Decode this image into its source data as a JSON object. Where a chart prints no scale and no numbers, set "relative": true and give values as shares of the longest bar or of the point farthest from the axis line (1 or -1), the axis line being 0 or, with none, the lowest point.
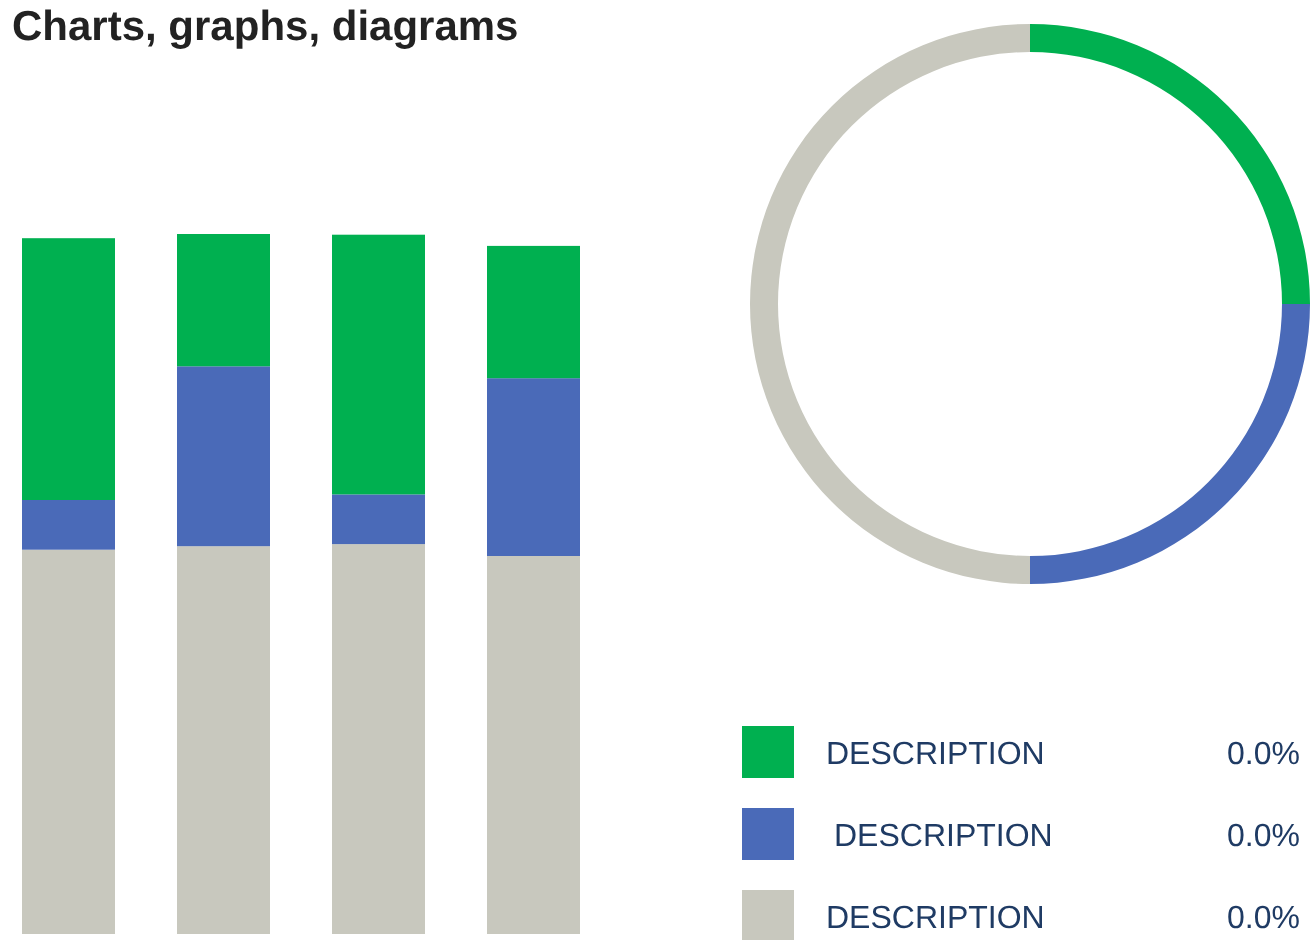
{
  "chart_data": [
    {
      "type": "bar",
      "title": "Charts, graphs, diagrams",
      "categories": [
        null,
        null,
        null,
        null
      ],
      "stacked": true,
      "relative": true,
      "series": [
        {
          "color": "#c8c8be",
          "values": [
            0.549,
            0.554,
            0.557,
            0.54
          ]
        },
        {
          "color": "#4a6ab8",
          "values": [
            0.071,
            0.257,
            0.071,
            0.254
          ]
        },
        {
          "color": "#00b050",
          "values": [
            0.374,
            0.189,
            0.371,
            0.189
          ]
        }
      ]
    },
    {
      "type": "donut",
      "categories": [
        "DESCRIPTION",
        "DESCRIPTION",
        "DESCRIPTION"
      ],
      "values": [
        25,
        25,
        50
      ],
      "colors": [
        "#00b050",
        "#4a6ab8",
        "#c8c8be"
      ],
      "annotations": [
        "0.0%",
        "0.0%",
        "0.0%"
      ],
      "legend": "bottom"
    }
  ]
}
